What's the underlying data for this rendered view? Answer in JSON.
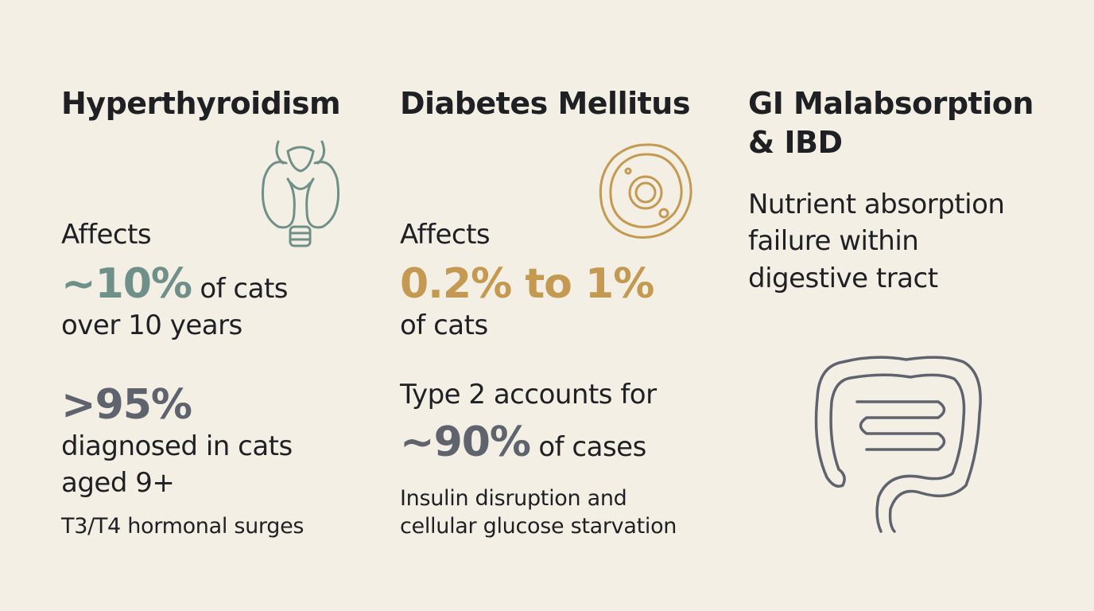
{
  "columns": [
    {
      "title": [
        "Hyperthyroidism"
      ],
      "intro": "Affects",
      "stat": "~10%",
      "stat_suffix": " of cats",
      "stat_after": "over 10 years",
      "stat2": ">95%",
      "stat2_lines": [
        "diagnosed in cats",
        "aged 9+"
      ],
      "note": [
        "T3/T4 hormonal surges"
      ]
    },
    {
      "title": [
        "Diabetes Mellitus"
      ],
      "intro": "Affects",
      "stat": "0.2% to 1%",
      "stat_after": "of cats",
      "stat2_before": "Type 2 accounts for",
      "stat2": "~90%",
      "stat2_suffix": " of cases",
      "note": [
        "Insulin disruption and",
        "cellular glucose starvation"
      ]
    },
    {
      "title": [
        "GI Malabsorption",
        "& IBD"
      ],
      "body": [
        "Nutrient absorption",
        "failure within",
        "digestive tract"
      ]
    }
  ]
}
